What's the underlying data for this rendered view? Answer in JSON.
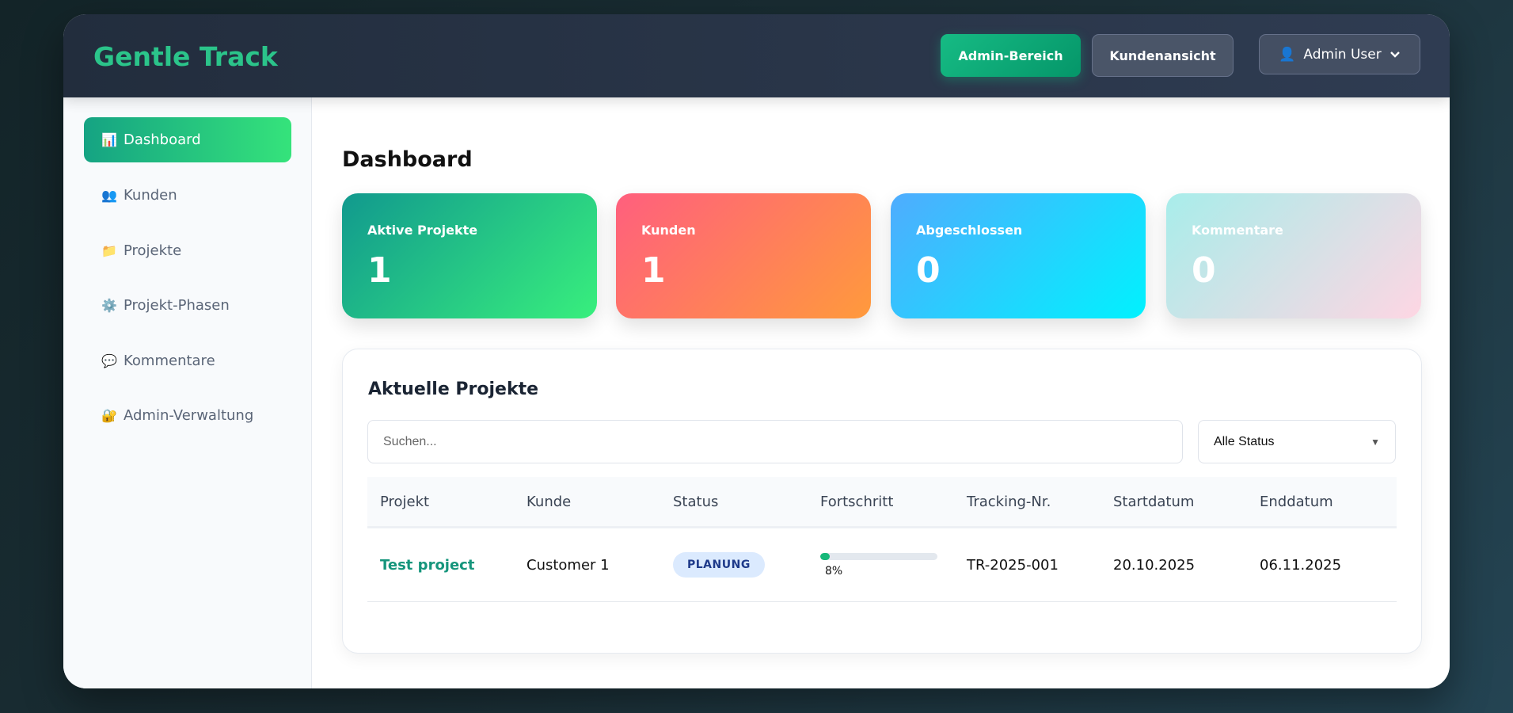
{
  "header": {
    "logo": "Gentle Track",
    "admin_button": "Admin-Bereich",
    "customer_view_button": "Kundenansicht",
    "user_menu": "Admin User"
  },
  "sidebar": {
    "items": [
      {
        "label": "Dashboard",
        "icon": "📊",
        "active": true
      },
      {
        "label": "Kunden",
        "icon": "👥"
      },
      {
        "label": "Projekte",
        "icon": "📁"
      },
      {
        "label": "Projekt-Phasen",
        "icon": "⚙️"
      },
      {
        "label": "Kommentare",
        "icon": "💬"
      },
      {
        "label": "Admin-Verwaltung",
        "icon": "🔐"
      }
    ]
  },
  "main": {
    "title": "Dashboard",
    "stats": [
      {
        "label": "Aktive Projekte",
        "value": "1"
      },
      {
        "label": "Kunden",
        "value": "1"
      },
      {
        "label": "Abgeschlossen",
        "value": "0"
      },
      {
        "label": "Kommentare",
        "value": "0"
      }
    ],
    "projects": {
      "title": "Aktuelle Projekte",
      "search_placeholder": "Suchen...",
      "status_filter": "Alle Status",
      "columns": [
        "Projekt",
        "Kunde",
        "Status",
        "Fortschritt",
        "Tracking-Nr.",
        "Startdatum",
        "Enddatum"
      ],
      "rows": [
        {
          "project": "Test project",
          "customer": "Customer 1",
          "status": "PLANUNG",
          "progress": 8,
          "progress_label": "8%",
          "tracking": "TR-2025-001",
          "start": "20.10.2025",
          "end": "06.11.2025"
        }
      ]
    }
  },
  "colors": {
    "accent": "#10b981",
    "logo": "#2bc48a",
    "status_badge_bg": "#dbeafe"
  }
}
